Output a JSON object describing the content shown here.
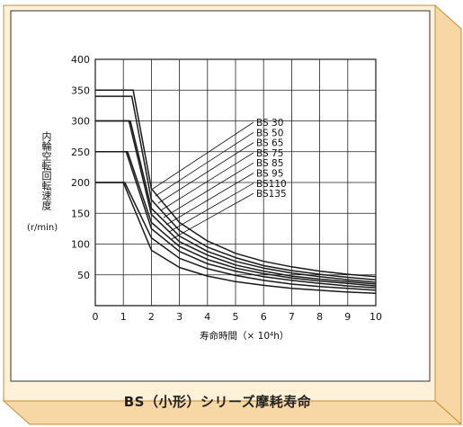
{
  "colors": {
    "frame_fill": "#fdf1d8",
    "frame_side": "#f7d8a5",
    "frame_border": "#c58e3a",
    "plot_line": "#1a1a1a"
  },
  "caption": "BS（小形）シリーズ摩耗寿命",
  "chart_data": {
    "type": "line",
    "title": "",
    "xlabel": "寿命時間（× 10⁴h）",
    "ylabel": "内輪空転回転速度",
    "yunit": "(r/min)",
    "xlim": [
      0,
      10
    ],
    "ylim": [
      0,
      400
    ],
    "xticks": [
      "0",
      "1",
      "2",
      "3",
      "4",
      "5",
      "6",
      "7",
      "8",
      "9",
      "10"
    ],
    "yticks": [
      "50",
      "100",
      "150",
      "200",
      "250",
      "300",
      "350",
      "400"
    ],
    "grid": true,
    "legend_entries": [
      "BS 30",
      "BS 50",
      "BS 65",
      "BS 75",
      "BS 85",
      "BS 95",
      "BS110",
      "BS135"
    ],
    "series": [
      {
        "name": "BS 30",
        "plateau": 350,
        "x": [
          1.35,
          2.0,
          3.0,
          4.0,
          5.0,
          6.0,
          7.0,
          8.0,
          9.0,
          10.0
        ],
        "y": [
          350,
          190,
          135,
          105,
          85,
          72,
          63,
          56,
          51,
          47
        ]
      },
      {
        "name": "BS 50",
        "plateau": 340,
        "x": [
          1.3,
          2.0,
          3.0,
          4.0,
          5.0,
          6.0,
          7.0,
          8.0,
          9.0,
          10.0
        ],
        "y": [
          340,
          172,
          122,
          95,
          78,
          65,
          57,
          51,
          46,
          42
        ]
      },
      {
        "name": "BS 65",
        "plateau": 300,
        "x": [
          1.25,
          2.0,
          3.0,
          4.0,
          5.0,
          6.0,
          7.0,
          8.0,
          9.0,
          10.0
        ],
        "y": [
          300,
          158,
          113,
          88,
          72,
          61,
          53,
          47,
          42,
          38
        ]
      },
      {
        "name": "BS 75",
        "plateau": 300,
        "x": [
          1.2,
          2.0,
          3.0,
          4.0,
          5.0,
          6.0,
          7.0,
          8.0,
          9.0,
          10.0
        ],
        "y": [
          300,
          148,
          104,
          82,
          66,
          56,
          48,
          43,
          39,
          35
        ]
      },
      {
        "name": "BS 85",
        "plateau": 250,
        "x": [
          1.15,
          2.0,
          3.0,
          4.0,
          5.0,
          6.0,
          7.0,
          8.0,
          9.0,
          10.0
        ],
        "y": [
          250,
          135,
          96,
          75,
          61,
          52,
          45,
          40,
          36,
          32
        ]
      },
      {
        "name": "BS 95",
        "plateau": 250,
        "x": [
          1.1,
          2.0,
          3.0,
          4.0,
          5.0,
          6.0,
          7.0,
          8.0,
          9.0,
          10.0
        ],
        "y": [
          250,
          125,
          88,
          68,
          56,
          47,
          41,
          36,
          32,
          29
        ]
      },
      {
        "name": "BS110",
        "plateau": 200,
        "x": [
          1.05,
          2.0,
          3.0,
          4.0,
          5.0,
          6.0,
          7.0,
          8.0,
          9.0,
          10.0
        ],
        "y": [
          200,
          110,
          77,
          60,
          49,
          41,
          35,
          31,
          28,
          25
        ]
      },
      {
        "name": "BS135",
        "plateau": 200,
        "x": [
          1.0,
          2.0,
          3.0,
          4.0,
          5.0,
          6.0,
          7.0,
          8.0,
          9.0,
          10.0
        ],
        "y": [
          200,
          90,
          62,
          48,
          39,
          33,
          28,
          25,
          22,
          20
        ]
      }
    ]
  }
}
